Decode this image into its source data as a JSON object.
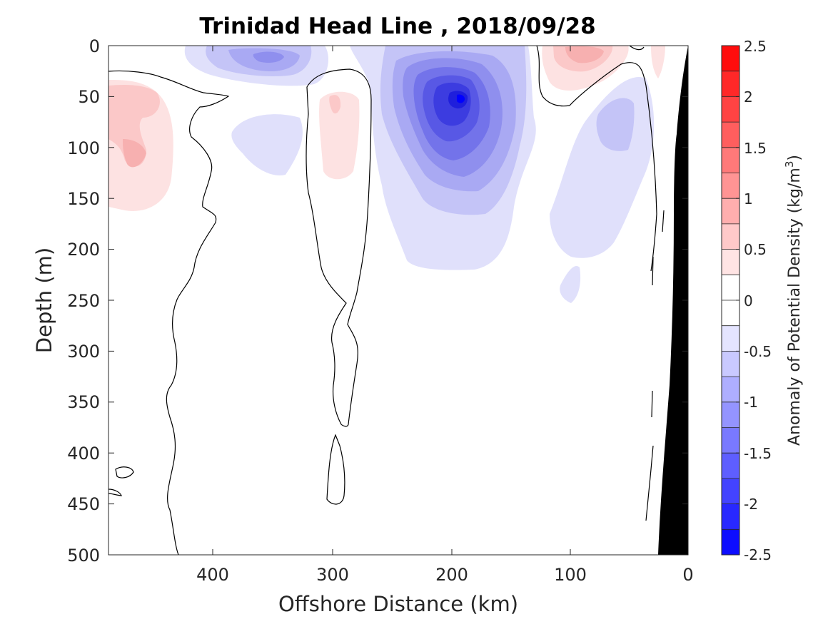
{
  "chart_data": {
    "type": "heatmap",
    "title": "Trinidad Head Line , 2018/09/28",
    "xlabel": "Offshore Distance (km)",
    "ylabel": "Depth (m)",
    "xlim": [
      490,
      0
    ],
    "ylim": [
      0,
      500
    ],
    "x_ticks": [
      "400",
      "300",
      "200",
      "100",
      "0"
    ],
    "y_ticks": [
      "0",
      "50",
      "100",
      "150",
      "200",
      "250",
      "300",
      "350",
      "400",
      "450",
      "500"
    ],
    "colorbar": {
      "label_prefix": "Anomaly of Potential Density (kg/m",
      "label_sup": "3",
      "label_suffix": ")",
      "range": [
        -2.5,
        2.5
      ],
      "step": 0.25,
      "ticks": [
        "2.5",
        "2",
        "1.5",
        "1",
        "0.5",
        "0",
        "-0.5",
        "-1",
        "-1.5",
        "-2",
        "-2.5"
      ],
      "positive_color": "#ff0000",
      "negative_color": "#0000ff"
    },
    "anomalies": [
      {
        "x": 470,
        "y": 65,
        "value": 0.5
      },
      {
        "x": 465,
        "y": 110,
        "value": 0.5
      },
      {
        "x": 355,
        "y": 10,
        "value": -0.75
      },
      {
        "x": 340,
        "y": 30,
        "value": -0.25
      },
      {
        "x": 360,
        "y": 105,
        "value": -0.25
      },
      {
        "x": 290,
        "y": 100,
        "value": 0.25
      },
      {
        "x": 190,
        "y": 55,
        "value": -2.25
      },
      {
        "x": 95,
        "y": 5,
        "value": 0.75
      },
      {
        "x": 65,
        "y": 90,
        "value": -0.5
      },
      {
        "x": 100,
        "y": 240,
        "value": -0.25
      }
    ],
    "land_mask": "black",
    "zero_contour": true
  }
}
